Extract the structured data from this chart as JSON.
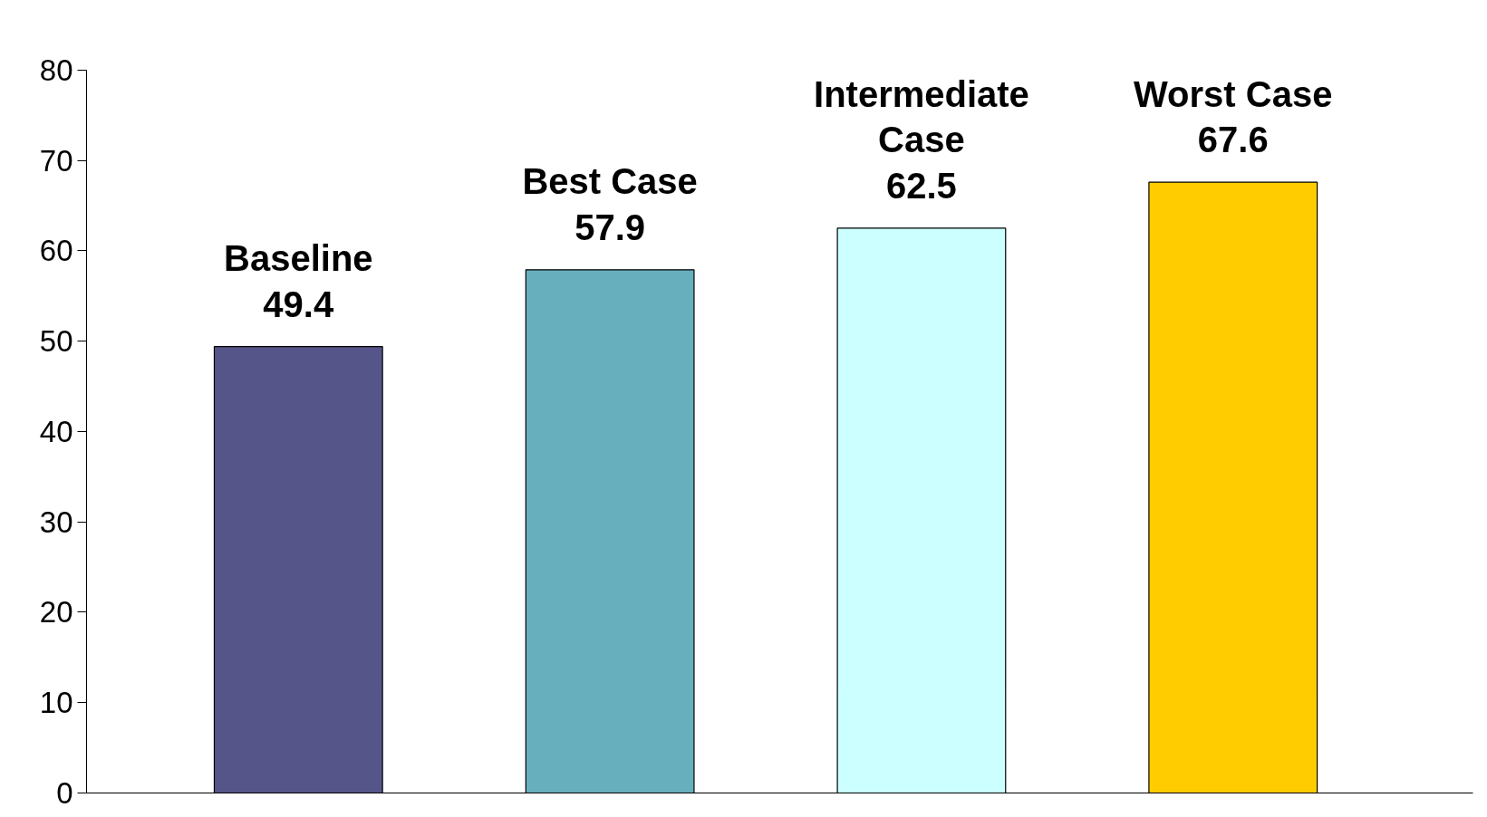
{
  "chart_data": {
    "type": "bar",
    "categories": [
      "Baseline",
      "Best Case",
      "Intermediate Case",
      "Worst Case"
    ],
    "values": [
      49.4,
      57.9,
      62.5,
      67.6
    ],
    "colors": [
      "#55558a",
      "#68afbd",
      "#ccffff",
      "#ffcc00"
    ],
    "ylim": [
      0,
      80
    ],
    "yticks": [
      0,
      10,
      20,
      30,
      40,
      50,
      60,
      70,
      80
    ],
    "data_labels": true,
    "grid": false,
    "tick_labels": "y"
  }
}
